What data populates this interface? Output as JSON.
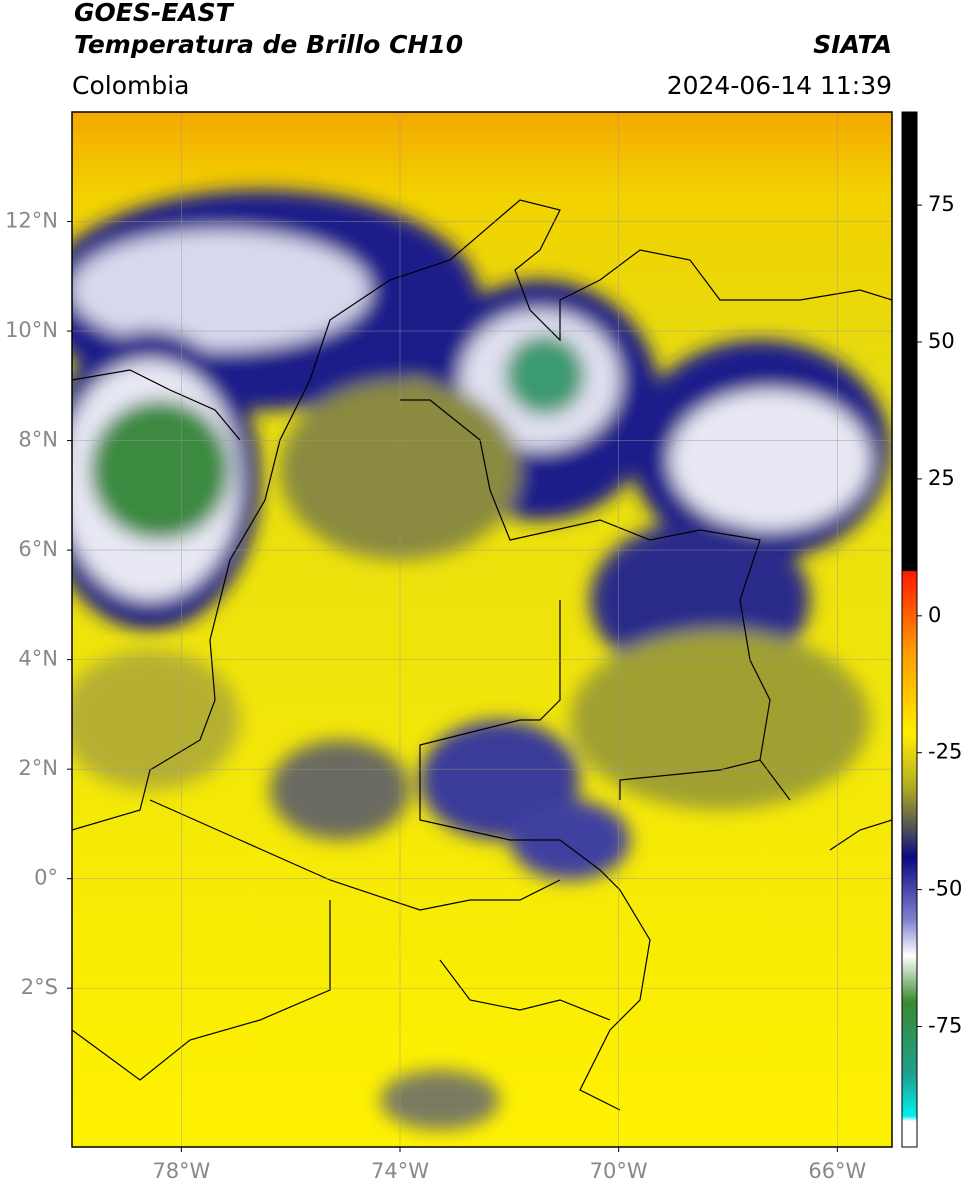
{
  "header": {
    "title": "GOES-EAST",
    "subtitle": "Temperatura de Brillo CH10",
    "source": "SIATA",
    "region": "Colombia",
    "datetime": "2024-06-14 11:39"
  },
  "map": {
    "xlim": [
      -80,
      -65
    ],
    "ylim": [
      -4.9,
      14
    ],
    "grid": true,
    "xticks": [
      {
        "value": -78,
        "label": "78°W"
      },
      {
        "value": -74,
        "label": "74°W"
      },
      {
        "value": -70,
        "label": "70°W"
      },
      {
        "value": -66,
        "label": "66°W"
      }
    ],
    "yticks": [
      {
        "value": 12,
        "label": "12°N"
      },
      {
        "value": 10,
        "label": "10°N"
      },
      {
        "value": 8,
        "label": "8°N"
      },
      {
        "value": 6,
        "label": "6°N"
      },
      {
        "value": 4,
        "label": "4°N"
      },
      {
        "value": 2,
        "label": "2°N"
      },
      {
        "value": 0,
        "label": "0°"
      },
      {
        "value": -2,
        "label": "2°S"
      }
    ]
  },
  "colorbar": {
    "lim": [
      -97,
      92
    ],
    "ticks": [
      75,
      50,
      25,
      0,
      -25,
      -50,
      -75
    ]
  }
}
